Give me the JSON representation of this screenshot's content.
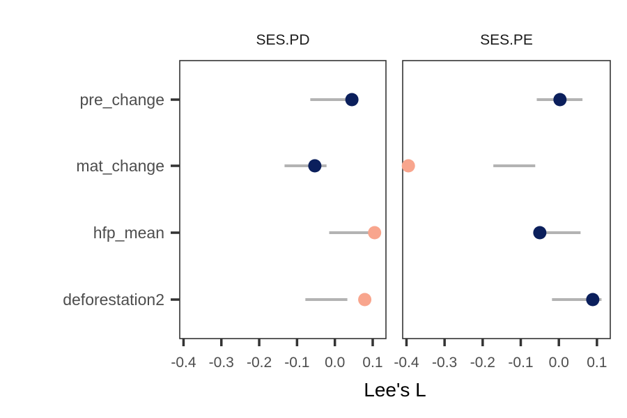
{
  "chart_data": {
    "type": "scatter",
    "subtype": "faceted dot-and-interval plot",
    "xlabel": "Lee's L",
    "xlim": [
      -0.41,
      0.135
    ],
    "x_ticks": [
      "-0.4",
      "-0.3",
      "-0.2",
      "-0.1",
      "0.0",
      "0.1"
    ],
    "x_tick_values": [
      -0.4,
      -0.3,
      -0.2,
      -0.1,
      0.0,
      0.1
    ],
    "categories": [
      "pre_change",
      "mat_change",
      "hfp_mean",
      "deforestation2"
    ],
    "grid": false,
    "legend": "none",
    "colors": {
      "dark_point": "#0b1f5c",
      "light_point": "#f8a58d",
      "interval": "#b3b3b3",
      "axis": "#333333",
      "text": "#4d4d4d"
    },
    "facets": [
      {
        "title": "SES.PD",
        "points": [
          {
            "category": "pre_change",
            "value": 0.045,
            "low": -0.065,
            "high": 0.045,
            "color_group": "dark_point"
          },
          {
            "category": "mat_change",
            "value": -0.053,
            "low": -0.133,
            "high": -0.022,
            "color_group": "dark_point"
          },
          {
            "category": "hfp_mean",
            "value": 0.105,
            "low": -0.015,
            "high": 0.105,
            "color_group": "light_point"
          },
          {
            "category": "deforestation2",
            "value": 0.079,
            "low": -0.078,
            "high": 0.033,
            "color_group": "light_point"
          }
        ]
      },
      {
        "title": "SES.PE",
        "points": [
          {
            "category": "pre_change",
            "value": 0.003,
            "low": -0.058,
            "high": 0.062,
            "color_group": "dark_point"
          },
          {
            "category": "mat_change",
            "value": -0.395,
            "low": -0.172,
            "high": -0.062,
            "color_group": "light_point"
          },
          {
            "category": "hfp_mean",
            "value": -0.05,
            "low": -0.05,
            "high": 0.057,
            "color_group": "dark_point"
          },
          {
            "category": "deforestation2",
            "value": 0.089,
            "low": -0.018,
            "high": 0.112,
            "color_group": "dark_point"
          }
        ]
      }
    ]
  }
}
